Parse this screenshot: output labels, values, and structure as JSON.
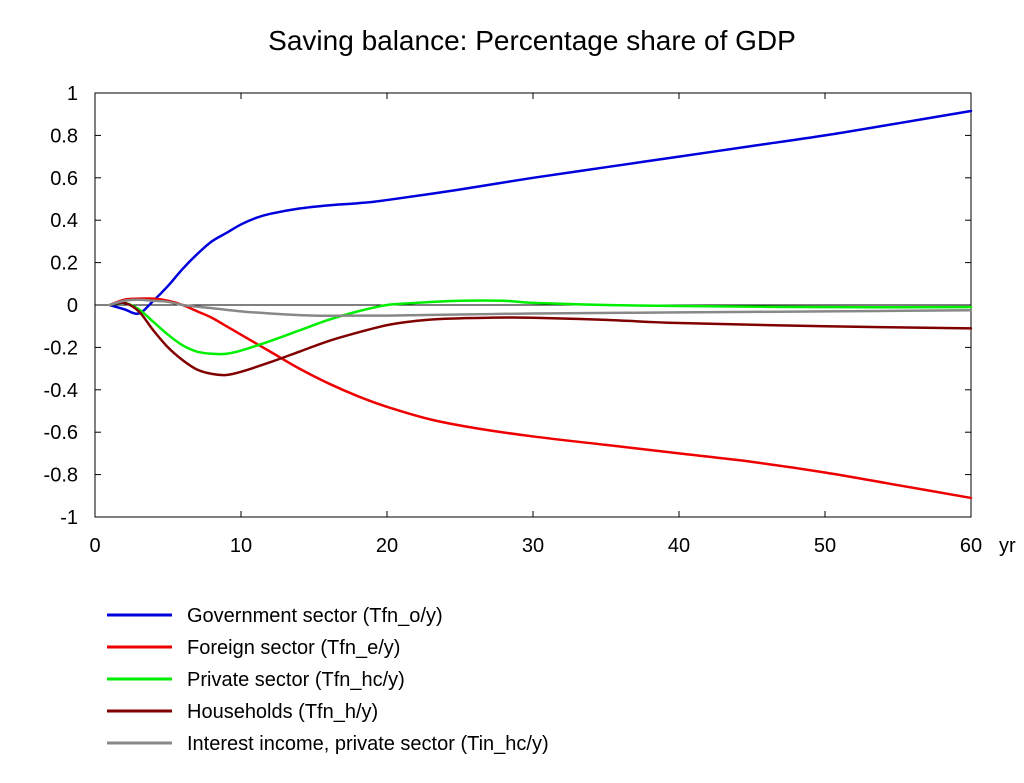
{
  "chart_data": {
    "type": "line",
    "title": "Saving balance: Percentage share of GDP",
    "xlabel": "",
    "ylabel": "",
    "x_unit_label": "yr",
    "xlim": [
      0,
      60
    ],
    "ylim": [
      -1,
      1
    ],
    "x_ticks": [
      0,
      10,
      20,
      30,
      40,
      50,
      60
    ],
    "x_tick_labels": [
      "0",
      "10",
      "20",
      "30",
      "40",
      "50",
      "60"
    ],
    "y_ticks": [
      1,
      0.8,
      0.6,
      0.4,
      0.2,
      0,
      -0.2,
      -0.4,
      -0.6,
      -0.8,
      -1
    ],
    "y_tick_labels": [
      "1",
      "0.8",
      "0.6",
      "0.4",
      "0.2",
      "0",
      "-0.2",
      "-0.4",
      "-0.6",
      "-0.8",
      "-1"
    ],
    "grid": false,
    "zero_line": true,
    "legend_position": "bottom",
    "series": [
      {
        "name": "Government sector (Tfn_o/y)",
        "color": "#0000dd",
        "points": [
          [
            1,
            0
          ],
          [
            2,
            -0.02
          ],
          [
            3,
            -0.04
          ],
          [
            4,
            0.02
          ],
          [
            5,
            0.09
          ],
          [
            6,
            0.17
          ],
          [
            7,
            0.24
          ],
          [
            8,
            0.3
          ],
          [
            9,
            0.34
          ],
          [
            10,
            0.38
          ],
          [
            11,
            0.41
          ],
          [
            12,
            0.43
          ],
          [
            14,
            0.455
          ],
          [
            16,
            0.47
          ],
          [
            18,
            0.48
          ],
          [
            20,
            0.495
          ],
          [
            25,
            0.545
          ],
          [
            30,
            0.6
          ],
          [
            35,
            0.65
          ],
          [
            40,
            0.7
          ],
          [
            45,
            0.75
          ],
          [
            50,
            0.8
          ],
          [
            55,
            0.857
          ],
          [
            60,
            0.915
          ]
        ]
      },
      {
        "name": "Foreign sector (Tfn_e/y)",
        "color": "#ee0000",
        "points": [
          [
            1,
            0
          ],
          [
            2,
            0.025
          ],
          [
            3,
            0.03
          ],
          [
            4,
            0.03
          ],
          [
            5,
            0.02
          ],
          [
            6,
            0
          ],
          [
            7,
            -0.03
          ],
          [
            8,
            -0.06
          ],
          [
            9,
            -0.1
          ],
          [
            10,
            -0.14
          ],
          [
            12,
            -0.22
          ],
          [
            14,
            -0.3
          ],
          [
            16,
            -0.37
          ],
          [
            18,
            -0.43
          ],
          [
            20,
            -0.48
          ],
          [
            23,
            -0.54
          ],
          [
            26,
            -0.58
          ],
          [
            30,
            -0.62
          ],
          [
            35,
            -0.66
          ],
          [
            40,
            -0.7
          ],
          [
            45,
            -0.74
          ],
          [
            50,
            -0.79
          ],
          [
            55,
            -0.85
          ],
          [
            60,
            -0.91
          ]
        ]
      },
      {
        "name": "Private sector (Tfn_hc/y)",
        "color": "#00ee00",
        "points": [
          [
            1,
            0
          ],
          [
            2,
            0.01
          ],
          [
            3,
            -0.02
          ],
          [
            4,
            -0.08
          ],
          [
            5,
            -0.14
          ],
          [
            6,
            -0.19
          ],
          [
            7,
            -0.22
          ],
          [
            8,
            -0.23
          ],
          [
            9,
            -0.23
          ],
          [
            10,
            -0.215
          ],
          [
            12,
            -0.17
          ],
          [
            14,
            -0.12
          ],
          [
            16,
            -0.07
          ],
          [
            18,
            -0.03
          ],
          [
            20,
            0
          ],
          [
            22,
            0.01
          ],
          [
            25,
            0.02
          ],
          [
            28,
            0.02
          ],
          [
            30,
            0.01
          ],
          [
            35,
            0
          ],
          [
            40,
            -0.005
          ],
          [
            50,
            -0.01
          ],
          [
            60,
            -0.01
          ]
        ]
      },
      {
        "name": "Households (Tfn_h/y)",
        "color": "#800000",
        "points": [
          [
            1,
            0
          ],
          [
            2,
            0.01
          ],
          [
            3,
            -0.03
          ],
          [
            4,
            -0.12
          ],
          [
            5,
            -0.2
          ],
          [
            6,
            -0.26
          ],
          [
            7,
            -0.305
          ],
          [
            8,
            -0.325
          ],
          [
            9,
            -0.33
          ],
          [
            10,
            -0.315
          ],
          [
            12,
            -0.27
          ],
          [
            14,
            -0.22
          ],
          [
            16,
            -0.17
          ],
          [
            18,
            -0.13
          ],
          [
            20,
            -0.095
          ],
          [
            22,
            -0.075
          ],
          [
            24,
            -0.065
          ],
          [
            27,
            -0.06
          ],
          [
            30,
            -0.06
          ],
          [
            35,
            -0.07
          ],
          [
            40,
            -0.085
          ],
          [
            50,
            -0.1
          ],
          [
            60,
            -0.11
          ]
        ]
      },
      {
        "name": "Interest income, private sector (Tin_hc/y)",
        "color": "#888888",
        "points": [
          [
            1,
            0
          ],
          [
            2,
            0.02
          ],
          [
            3,
            0.025
          ],
          [
            4,
            0.02
          ],
          [
            5,
            0.015
          ],
          [
            6,
            0
          ],
          [
            8,
            -0.015
          ],
          [
            10,
            -0.03
          ],
          [
            12,
            -0.04
          ],
          [
            15,
            -0.05
          ],
          [
            18,
            -0.05
          ],
          [
            20,
            -0.05
          ],
          [
            25,
            -0.045
          ],
          [
            30,
            -0.04
          ],
          [
            40,
            -0.035
          ],
          [
            50,
            -0.03
          ],
          [
            60,
            -0.025
          ]
        ]
      }
    ]
  }
}
